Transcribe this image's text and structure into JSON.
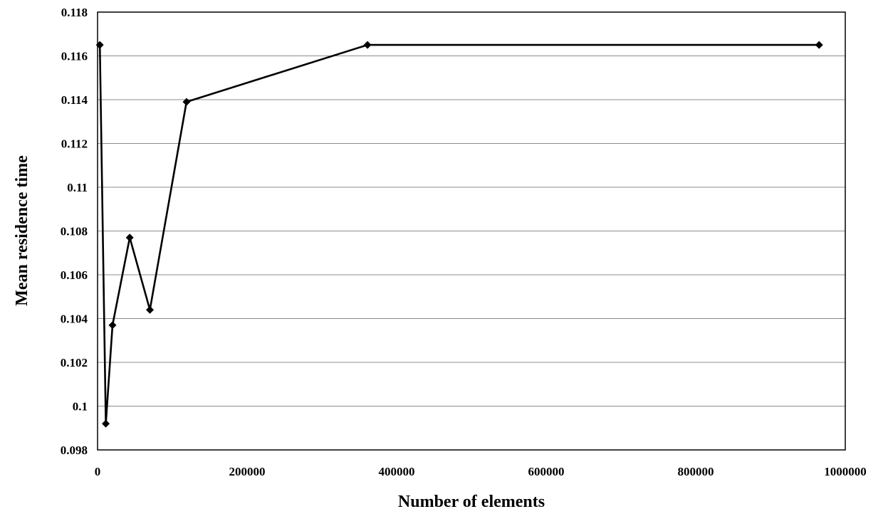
{
  "chart_data": {
    "type": "line",
    "title": "",
    "xlabel": "Number of elements",
    "ylabel": "Mean residence time",
    "xlim": [
      0,
      1000000
    ],
    "ylim": [
      0.098,
      0.118
    ],
    "x_ticks": [
      0,
      200000,
      400000,
      600000,
      800000,
      1000000
    ],
    "x_tick_labels": [
      "0",
      "200000",
      "400000",
      "600000",
      "800000",
      "1000000"
    ],
    "y_ticks": [
      0.098,
      0.1,
      0.102,
      0.104,
      0.106,
      0.108,
      0.11,
      0.112,
      0.114,
      0.116,
      0.118
    ],
    "y_tick_labels": [
      "0.098",
      "0.1",
      "0.102",
      "0.104",
      "0.106",
      "0.108",
      "0.11",
      "0.112",
      "0.114",
      "0.116",
      "0.118"
    ],
    "grid": "horizontal",
    "legend": "none",
    "series": [
      {
        "marker": "diamond",
        "color": "#000000",
        "points": [
          {
            "x": 3000,
            "y": 0.1165
          },
          {
            "x": 11000,
            "y": 0.0992
          },
          {
            "x": 20000,
            "y": 0.1037
          },
          {
            "x": 43000,
            "y": 0.1077
          },
          {
            "x": 70000,
            "y": 0.1044
          },
          {
            "x": 119000,
            "y": 0.1139
          },
          {
            "x": 361000,
            "y": 0.1165
          },
          {
            "x": 965000,
            "y": 0.1165
          }
        ]
      }
    ]
  }
}
